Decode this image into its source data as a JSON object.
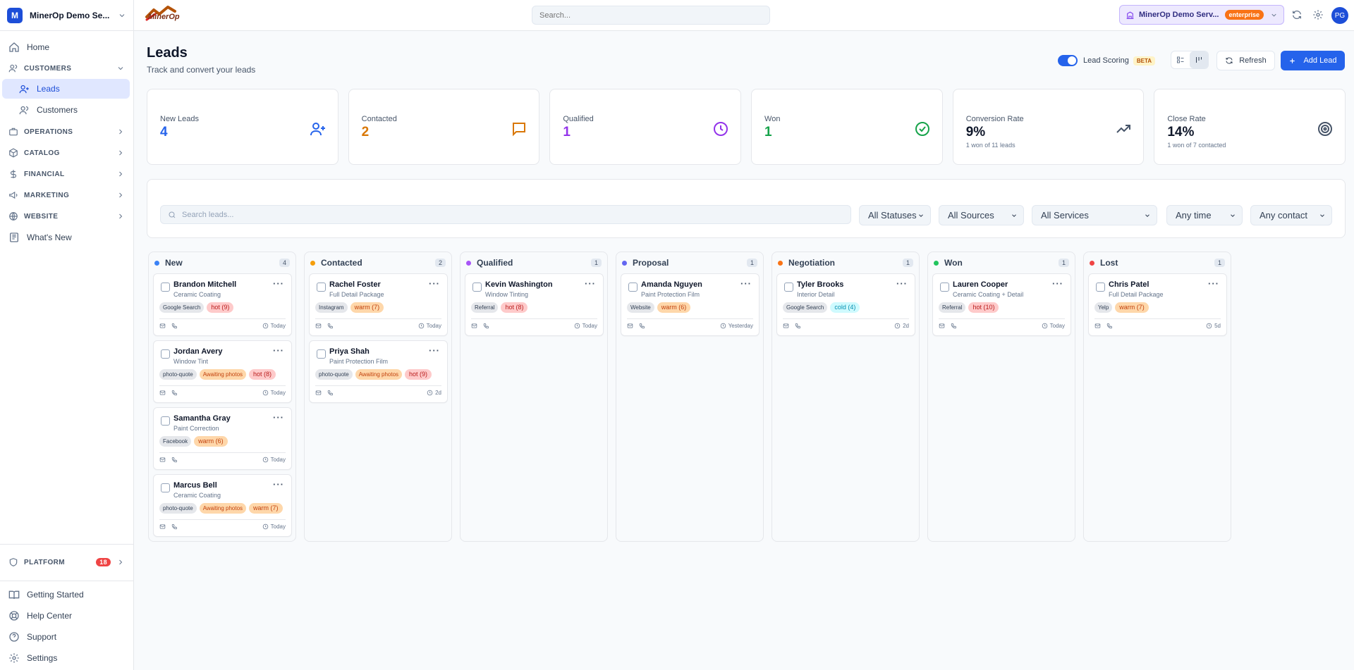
{
  "workspace": {
    "initial": "M",
    "name": "MinerOp Demo Se..."
  },
  "logo_text": "MinerOp",
  "top_search_placeholder": "Search...",
  "enterprise": {
    "name": "MinerOp Demo Serv...",
    "tier": "enterprise"
  },
  "user_initials": "PG",
  "sidebar": {
    "home": "Home",
    "customers_section": "CUSTOMERS",
    "leads": "Leads",
    "customers": "Customers",
    "operations": "OPERATIONS",
    "catalog": "CATALOG",
    "financial": "FINANCIAL",
    "marketing": "MARKETING",
    "website": "WEBSITE",
    "whats_new": "What's New",
    "platform": "PLATFORM",
    "platform_badge": "18",
    "getting_started": "Getting Started",
    "help_center": "Help Center",
    "support": "Support",
    "settings": "Settings"
  },
  "page": {
    "title": "Leads",
    "subtitle": "Track and convert your leads",
    "lead_scoring": "Lead Scoring",
    "beta": "BETA",
    "refresh": "Refresh",
    "add_lead": "Add Lead"
  },
  "stats": {
    "new": {
      "label": "New Leads",
      "value": "4"
    },
    "contacted": {
      "label": "Contacted",
      "value": "2"
    },
    "qualified": {
      "label": "Qualified",
      "value": "1"
    },
    "won": {
      "label": "Won",
      "value": "1"
    },
    "conversion": {
      "label": "Conversion Rate",
      "value": "9%",
      "sub": "1 won of 11 leads"
    },
    "close": {
      "label": "Close Rate",
      "value": "14%",
      "sub": "1 won of 7 contacted"
    }
  },
  "filters": {
    "search_placeholder": "Search leads...",
    "status": "All Statuses",
    "sources": "All Sources",
    "services": "All Services",
    "time": "Any time",
    "contact": "Any contact"
  },
  "columns": {
    "new": {
      "name": "New",
      "count": "4",
      "cards": [
        {
          "name": "Brandon Mitchell",
          "service": "Ceramic Coating",
          "source": "Google Search",
          "score": "hot (9)",
          "when": "Today"
        },
        {
          "name": "Jordan Avery",
          "service": "Window Tint",
          "source": "photo-quote",
          "flag": "Awaiting photos",
          "score": "hot (8)",
          "when": "Today"
        },
        {
          "name": "Samantha Gray",
          "service": "Paint Correction",
          "source": "Facebook",
          "score": "warm (6)",
          "when": "Today"
        },
        {
          "name": "Marcus Bell",
          "service": "Ceramic Coating",
          "source": "photo-quote",
          "flag": "Awaiting photos",
          "score": "warm (7)",
          "when": "Today"
        }
      ]
    },
    "contacted": {
      "name": "Contacted",
      "count": "2",
      "cards": [
        {
          "name": "Rachel Foster",
          "service": "Full Detail Package",
          "source": "Instagram",
          "score": "warm (7)",
          "when": "Today"
        },
        {
          "name": "Priya Shah",
          "service": "Paint Protection Film",
          "source": "photo-quote",
          "flag": "Awaiting photos",
          "score": "hot (9)",
          "when": "2d"
        }
      ]
    },
    "qualified": {
      "name": "Qualified",
      "count": "1",
      "cards": [
        {
          "name": "Kevin Washington",
          "service": "Window Tinting",
          "source": "Referral",
          "score": "hot (8)",
          "when": "Today"
        }
      ]
    },
    "proposal": {
      "name": "Proposal",
      "count": "1",
      "cards": [
        {
          "name": "Amanda Nguyen",
          "service": "Paint Protection Film",
          "source": "Website",
          "score": "warm (6)",
          "when": "Yesterday"
        }
      ]
    },
    "negotiation": {
      "name": "Negotiation",
      "count": "1",
      "cards": [
        {
          "name": "Tyler Brooks",
          "service": "Interior Detail",
          "source": "Google Search",
          "score": "cold (4)",
          "when": "2d"
        }
      ]
    },
    "won": {
      "name": "Won",
      "count": "1",
      "cards": [
        {
          "name": "Lauren Cooper",
          "service": "Ceramic Coating + Detail",
          "source": "Referral",
          "score": "hot (10)",
          "when": "Today"
        }
      ]
    },
    "lost": {
      "name": "Lost",
      "count": "1",
      "cards": [
        {
          "name": "Chris Patel",
          "service": "Full Detail Package",
          "source": "Yelp",
          "score": "warm (7)",
          "when": "5d"
        }
      ]
    }
  },
  "colors": {
    "accent": "#2563eb",
    "new": "#3b82f6",
    "contacted": "#f59e0b",
    "qualified": "#a855f7",
    "proposal": "#6366f1",
    "negotiation": "#f97316",
    "won": "#22c55e",
    "lost": "#ef4444"
  }
}
